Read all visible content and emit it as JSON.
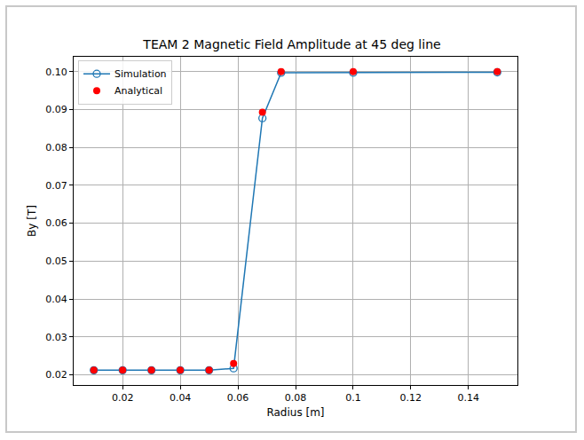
{
  "chart_data": {
    "type": "line",
    "title": "TEAM 2 Magnetic Field Amplitude at 45 deg line",
    "x_label": "Radius [m]",
    "y_label": "By [T]",
    "x": [
      0.01,
      0.02,
      0.03,
      0.04,
      0.05,
      0.0585,
      0.0685,
      0.075,
      0.1,
      0.15
    ],
    "series": [
      {
        "name": "Simulation",
        "type": "line",
        "color": "#1f77b4",
        "marker": "open circle",
        "line_style": "solid",
        "values": [
          0.0212,
          0.0212,
          0.0212,
          0.0212,
          0.0212,
          0.0217,
          0.0877,
          0.0997,
          0.0997,
          0.0998
        ]
      },
      {
        "name": "Analytical",
        "type": "scatter",
        "color": "#ff0000",
        "marker": "circle",
        "values": [
          0.0212,
          0.0212,
          0.0212,
          0.0212,
          0.0212,
          0.023,
          0.0893,
          0.1,
          0.1,
          0.1
        ]
      }
    ],
    "xlim": [
      0.003,
      0.157
    ],
    "xticks": [
      0.02,
      0.04,
      0.06,
      0.08,
      0.1,
      0.12,
      0.14
    ],
    "ylim": [
      0.0173,
      0.1039
    ],
    "yticks": [
      0.02,
      0.03,
      0.04,
      0.05,
      0.06,
      0.07,
      0.08,
      0.09,
      {
        "value": 0.1,
        "label": "0.10"
      }
    ],
    "grid": true,
    "legend": "upper left"
  }
}
